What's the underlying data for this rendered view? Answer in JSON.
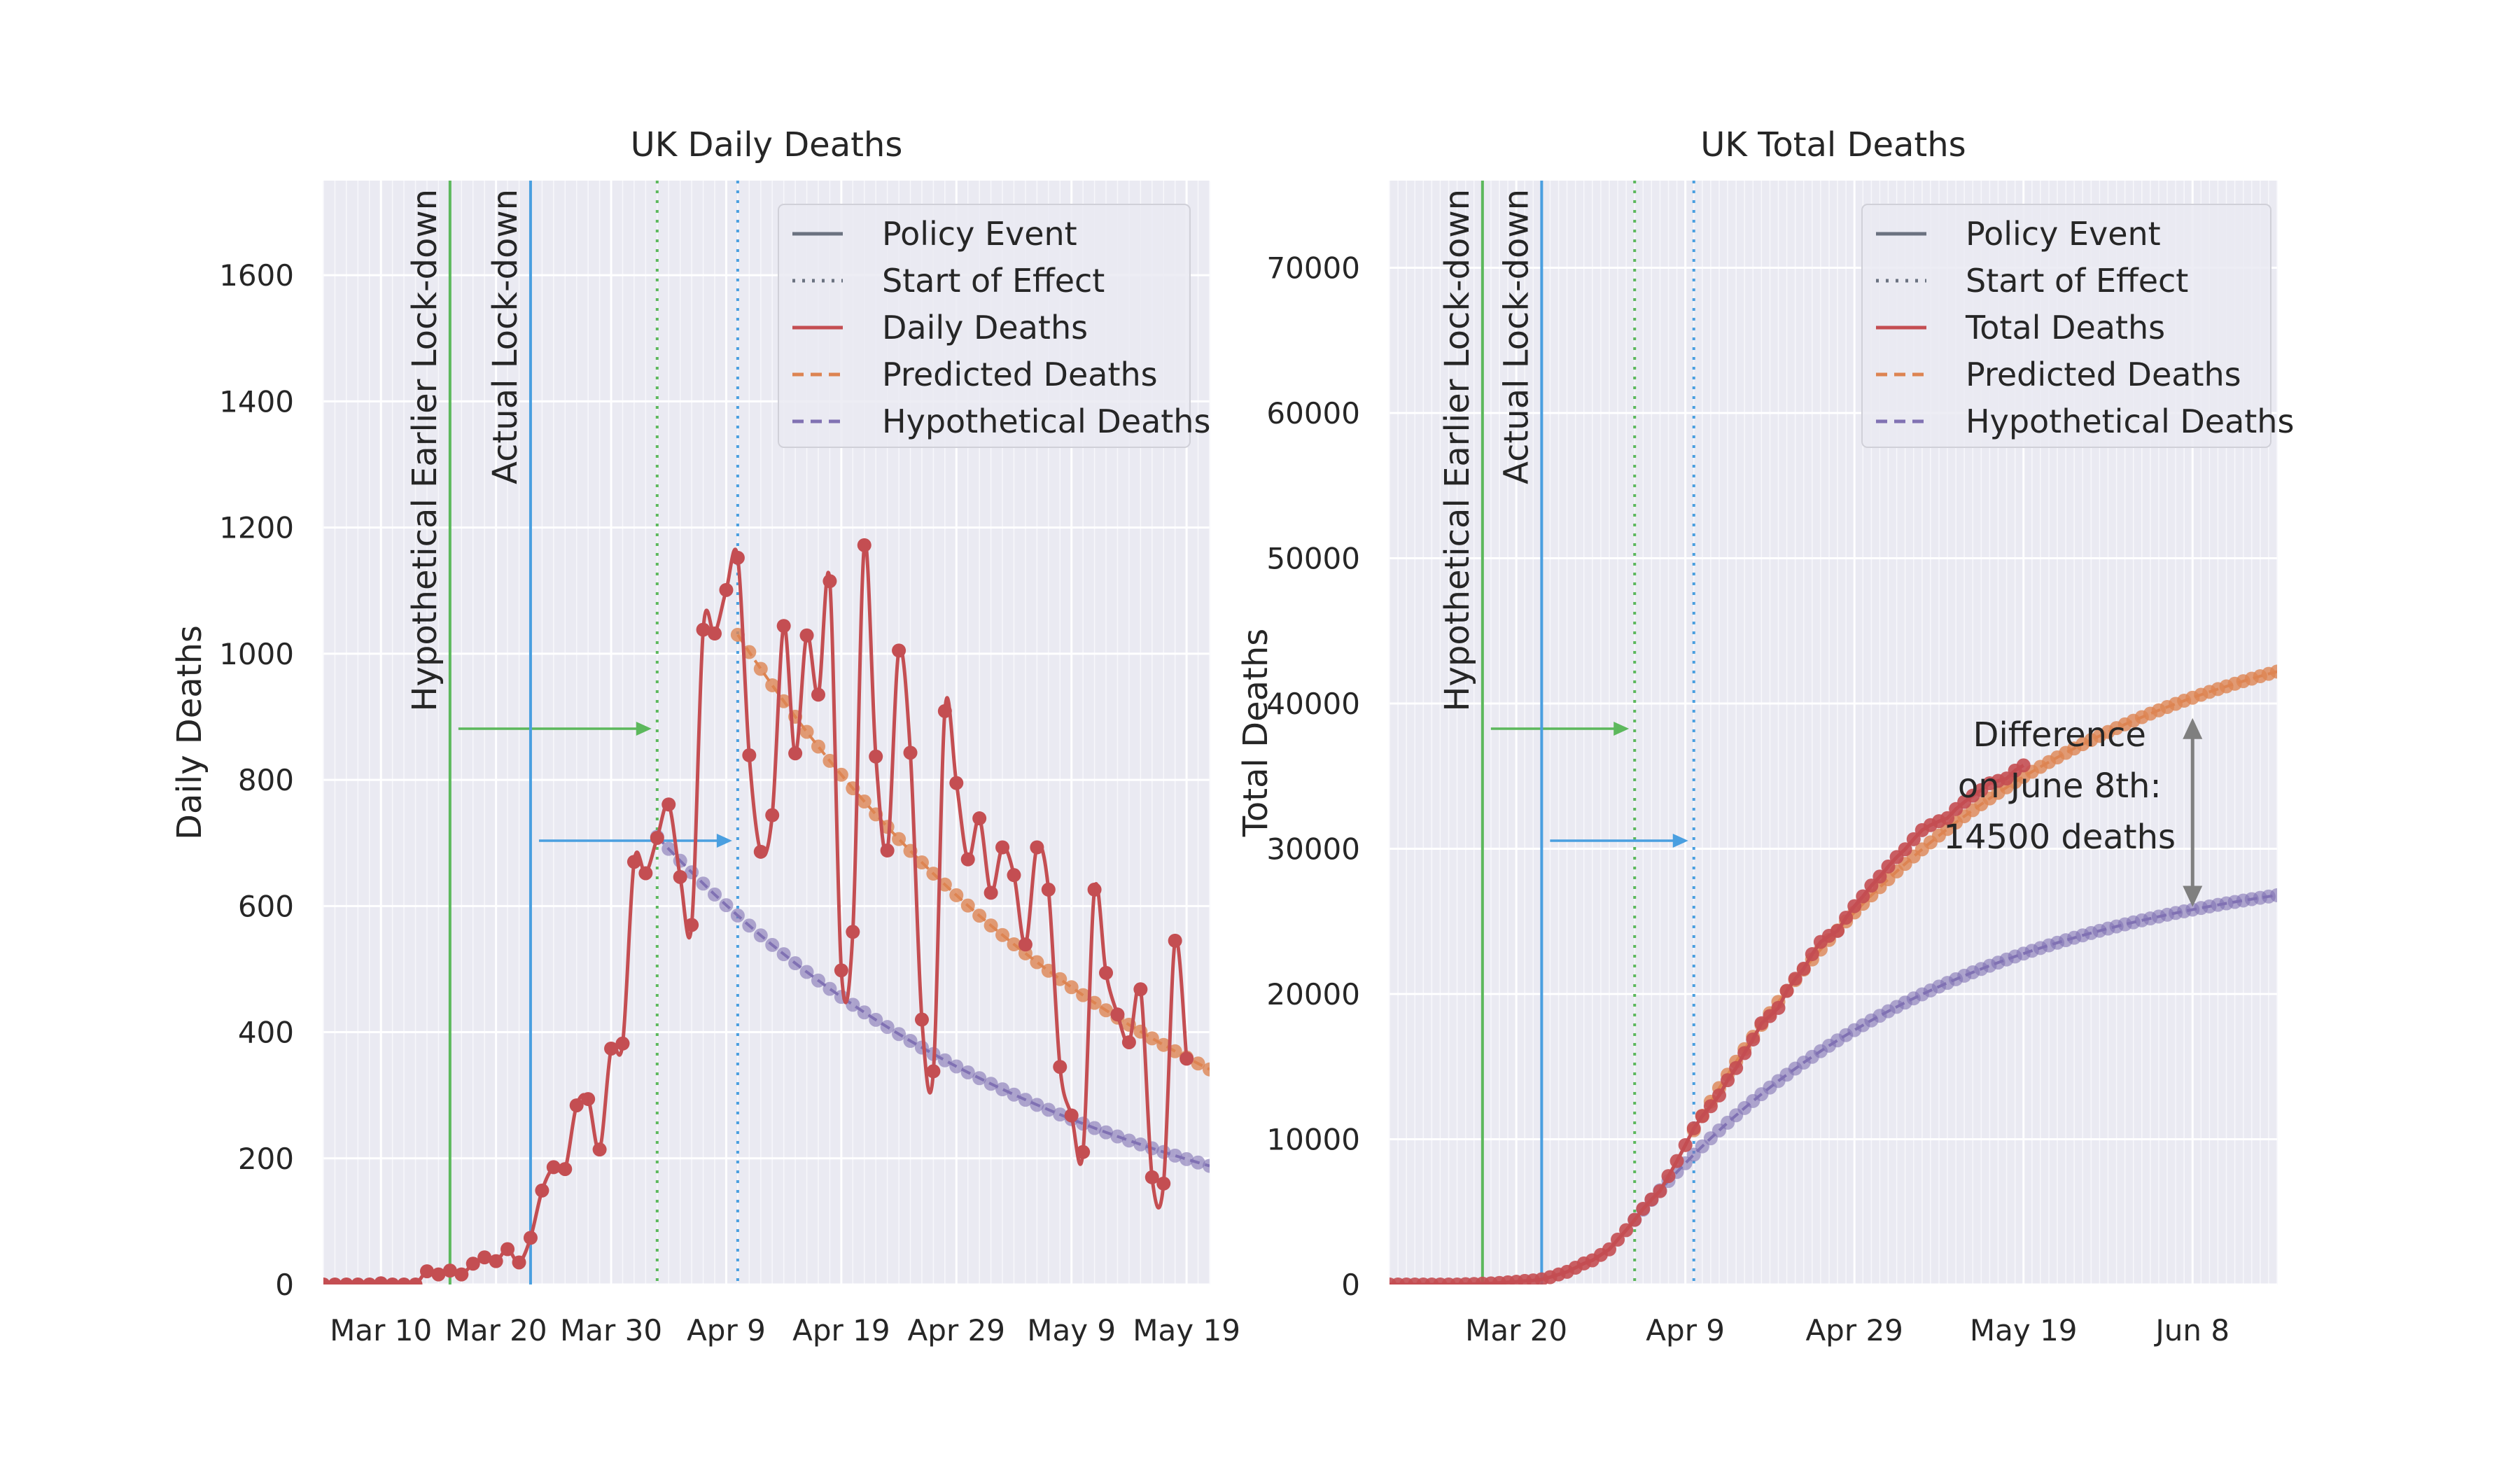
{
  "chart_data": [
    {
      "type": "line",
      "title": "UK Daily Deaths",
      "xlabel": "",
      "ylabel": "Daily Deaths",
      "x_range": [
        "2020-03-05",
        "2020-05-21"
      ],
      "ylim": [
        0,
        1750
      ],
      "yticks": [
        0,
        200,
        400,
        600,
        800,
        1000,
        1200,
        1400,
        1600
      ],
      "xticks": [
        {
          "date": "2020-03-10",
          "label": "Mar 10"
        },
        {
          "date": "2020-03-20",
          "label": "Mar 20"
        },
        {
          "date": "2020-03-30",
          "label": "Mar 30"
        },
        {
          "date": "2020-04-09",
          "label": "Apr 9"
        },
        {
          "date": "2020-04-19",
          "label": "Apr 19"
        },
        {
          "date": "2020-04-29",
          "label": "Apr 29"
        },
        {
          "date": "2020-05-09",
          "label": "May 9"
        },
        {
          "date": "2020-05-19",
          "label": "May 19"
        }
      ],
      "grid": true,
      "legend_position": "top-right",
      "legend": [
        "Policy Event",
        "Start of Effect",
        "Daily Deaths",
        "Predicted Deaths",
        "Hypothetical Deaths"
      ],
      "events": [
        {
          "label": "Hypothetical Earlier Lock-down",
          "date": "2020-03-16",
          "effect_date": "2020-04-03",
          "color": "#5cb85c"
        },
        {
          "label": "Actual Lock-down",
          "date": "2020-03-23",
          "effect_date": "2020-04-10",
          "color": "#4a9fe0"
        }
      ],
      "series": [
        {
          "name": "Daily Deaths",
          "color": "#c44e52",
          "start_date": "2020-03-05",
          "values": [
            0,
            0,
            0,
            0,
            0,
            2,
            0,
            0,
            0,
            21,
            16,
            22,
            16,
            33,
            43,
            37,
            56,
            35,
            74,
            149,
            186,
            183,
            284,
            294,
            214,
            374,
            382,
            670,
            652,
            708,
            761,
            646,
            570,
            1038,
            1032,
            1101,
            1152,
            839,
            686,
            744,
            1044,
            842,
            1029,
            935,
            1115,
            498,
            559,
            1172,
            837,
            688,
            1005,
            843,
            420,
            338,
            909,
            795,
            674,
            739,
            621,
            693,
            649,
            539,
            693,
            626,
            345,
            268,
            210,
            626,
            494,
            428,
            384,
            468,
            170,
            160,
            545,
            358
          ]
        },
        {
          "name": "Predicted Deaths",
          "color": "#dd8452",
          "start_date": "2020-04-10",
          "start_value": 1030,
          "end_date": "2020-05-21",
          "end_value": 340,
          "decay_per_day": 0.9734
        },
        {
          "name": "Hypothetical Deaths",
          "color": "#8172b3",
          "start_date": "2020-04-03",
          "start_value": 710,
          "end_date": "2020-05-21",
          "end_value": 188,
          "decay_per_day": 0.9727
        }
      ]
    },
    {
      "type": "line",
      "title": "UK Total Deaths",
      "xlabel": "",
      "ylabel": "Total Deaths",
      "x_range": [
        "2020-03-05",
        "2020-06-18"
      ],
      "ylim": [
        0,
        76000
      ],
      "yticks": [
        0,
        10000,
        20000,
        30000,
        40000,
        50000,
        60000,
        70000
      ],
      "xticks": [
        {
          "date": "2020-03-20",
          "label": "Mar 20"
        },
        {
          "date": "2020-04-09",
          "label": "Apr 9"
        },
        {
          "date": "2020-04-29",
          "label": "Apr 29"
        },
        {
          "date": "2020-05-19",
          "label": "May 19"
        },
        {
          "date": "2020-06-08",
          "label": "Jun 8"
        }
      ],
      "grid": true,
      "legend_position": "top-right",
      "legend": [
        "Policy Event",
        "Start of Effect",
        "Total Deaths",
        "Predicted Deaths",
        "Hypothetical Deaths"
      ],
      "events": [
        {
          "label": "Hypothetical Earlier Lock-down",
          "date": "2020-03-16",
          "effect_date": "2020-04-03",
          "color": "#5cb85c"
        },
        {
          "label": "Actual Lock-down",
          "date": "2020-03-23",
          "effect_date": "2020-04-10",
          "color": "#4a9fe0"
        }
      ],
      "series": [
        {
          "name": "Total Deaths",
          "color": "#c44e52",
          "cumulative_of": "Daily Deaths"
        },
        {
          "name": "Predicted Deaths",
          "color": "#dd8452",
          "end_date": "2020-06-18",
          "end_value": 42200
        },
        {
          "name": "Hypothetical Deaths",
          "color": "#8172b3",
          "end_date": "2020-06-18",
          "end_value": 26800
        }
      ],
      "annotation": {
        "lines": [
          "Difference",
          "on June 8th:",
          "14500 deaths"
        ],
        "date": "2020-06-08",
        "from_value": 39000,
        "to_value": 26000
      }
    }
  ]
}
